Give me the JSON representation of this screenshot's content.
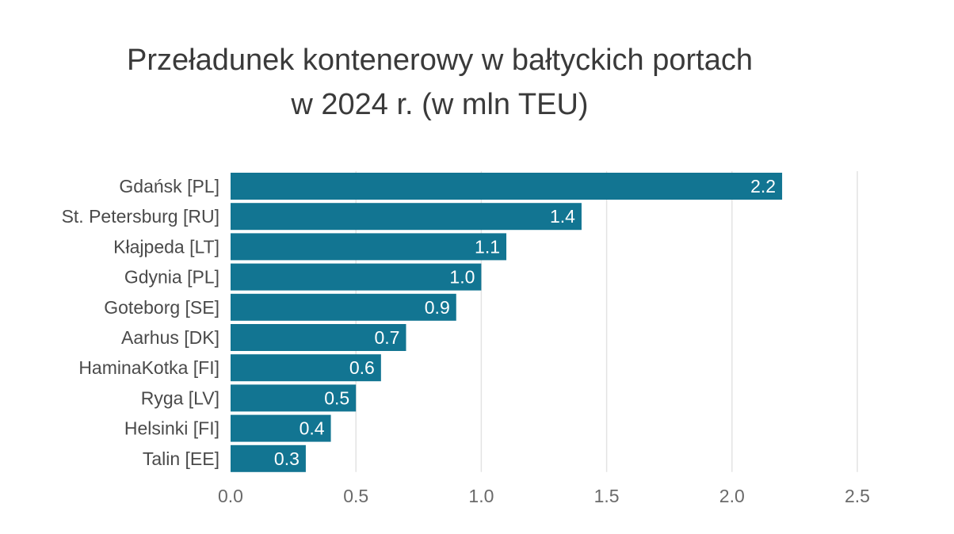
{
  "chart_data": {
    "type": "bar",
    "orientation": "horizontal",
    "title": "Przeładunek kontenerowy w bałtyckich portach",
    "subtitle": "w 2024 r. (w mln TEU)",
    "categories": [
      "Gdańsk [PL]",
      "St. Petersburg [RU]",
      "Kłajpeda [LT]",
      "Gdynia [PL]",
      "Goteborg [SE]",
      "Aarhus [DK]",
      "HaminaKotka [FI]",
      "Ryga [LV]",
      "Helsinki [FI]",
      "Talin [EE]"
    ],
    "values": [
      2.2,
      1.4,
      1.1,
      1.0,
      0.9,
      0.7,
      0.6,
      0.5,
      0.4,
      0.3
    ],
    "value_labels": [
      "2.2",
      "1.4",
      "1.1",
      "1.0",
      "0.9",
      "0.7",
      "0.6",
      "0.5",
      "0.4",
      "0.3"
    ],
    "xlim": [
      0,
      2.5
    ],
    "ticks": [
      0.0,
      0.5,
      1.0,
      1.5,
      2.0,
      2.5
    ],
    "tick_labels": [
      "0.0",
      "0.5",
      "1.0",
      "1.5",
      "2.0",
      "2.5"
    ],
    "xlabel": "",
    "ylabel": "",
    "grid": true,
    "legend": "none",
    "colors": {
      "bar": "#127592",
      "grid": "#e3e3e3",
      "title": "#3a3a3a",
      "category_text": "#4a4a4a",
      "tick_text": "#6a6a6a",
      "value_text": "#ffffff"
    }
  }
}
